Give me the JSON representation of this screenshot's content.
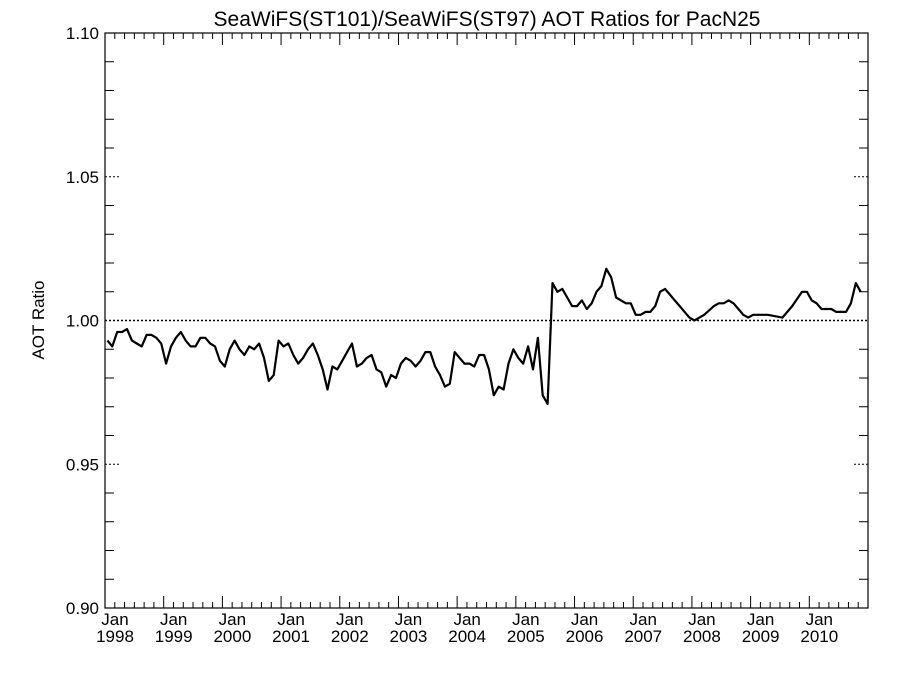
{
  "chart_data": {
    "type": "line",
    "title": "SeaWiFS(ST101)/SeaWiFS(ST97)  AOT Ratios for PacN25",
    "xlabel": "",
    "ylabel": "AOT Ratio",
    "ylim": [
      0.9,
      1.1
    ],
    "xlim": [
      "1998-01",
      "2010-12"
    ],
    "y_ticks": [
      "0.90",
      "0.95",
      "1.00",
      "1.05",
      "1.10"
    ],
    "x_ticks": [
      {
        "month": "Jan",
        "year": "1998"
      },
      {
        "month": "Jan",
        "year": "1999"
      },
      {
        "month": "Jan",
        "year": "2000"
      },
      {
        "month": "Jan",
        "year": "2001"
      },
      {
        "month": "Jan",
        "year": "2002"
      },
      {
        "month": "Jan",
        "year": "2003"
      },
      {
        "month": "Jan",
        "year": "2004"
      },
      {
        "month": "Jan",
        "year": "2005"
      },
      {
        "month": "Jan",
        "year": "2006"
      },
      {
        "month": "Jan",
        "year": "2007"
      },
      {
        "month": "Jan",
        "year": "2008"
      },
      {
        "month": "Jan",
        "year": "2009"
      },
      {
        "month": "Jan",
        "year": "2010"
      }
    ],
    "reference_line": 1.0,
    "grid": false,
    "series": [
      {
        "values": [
          [
            "1998-01",
            0.993
          ],
          [
            "1998-02",
            0.991
          ],
          [
            "1998-03",
            0.996
          ],
          [
            "1998-04",
            0.996
          ],
          [
            "1998-05",
            0.997
          ],
          [
            "1998-06",
            0.993
          ],
          [
            "1998-07",
            0.992
          ],
          [
            "1998-08",
            0.991
          ],
          [
            "1998-09",
            0.995
          ],
          [
            "1998-10",
            0.995
          ],
          [
            "1998-11",
            0.994
          ],
          [
            "1998-12",
            0.992
          ],
          [
            "1999-01",
            0.985
          ],
          [
            "1999-02",
            0.991
          ],
          [
            "1999-03",
            0.994
          ],
          [
            "1999-04",
            0.996
          ],
          [
            "1999-05",
            0.993
          ],
          [
            "1999-06",
            0.991
          ],
          [
            "1999-07",
            0.991
          ],
          [
            "1999-08",
            0.994
          ],
          [
            "1999-09",
            0.994
          ],
          [
            "1999-10",
            0.992
          ],
          [
            "1999-11",
            0.991
          ],
          [
            "1999-12",
            0.986
          ],
          [
            "2000-01",
            0.984
          ],
          [
            "2000-02",
            0.99
          ],
          [
            "2000-03",
            0.993
          ],
          [
            "2000-04",
            0.99
          ],
          [
            "2000-05",
            0.988
          ],
          [
            "2000-06",
            0.991
          ],
          [
            "2000-07",
            0.99
          ],
          [
            "2000-08",
            0.992
          ],
          [
            "2000-09",
            0.987
          ],
          [
            "2000-10",
            0.979
          ],
          [
            "2000-11",
            0.981
          ],
          [
            "2000-12",
            0.993
          ],
          [
            "2001-01",
            0.991
          ],
          [
            "2001-02",
            0.992
          ],
          [
            "2001-03",
            0.988
          ],
          [
            "2001-04",
            0.985
          ],
          [
            "2001-05",
            0.987
          ],
          [
            "2001-06",
            0.99
          ],
          [
            "2001-07",
            0.992
          ],
          [
            "2001-08",
            0.988
          ],
          [
            "2001-09",
            0.983
          ],
          [
            "2001-10",
            0.976
          ],
          [
            "2001-11",
            0.984
          ],
          [
            "2001-12",
            0.983
          ],
          [
            "2002-01",
            0.986
          ],
          [
            "2002-02",
            0.989
          ],
          [
            "2002-03",
            0.992
          ],
          [
            "2002-04",
            0.984
          ],
          [
            "2002-05",
            0.985
          ],
          [
            "2002-06",
            0.987
          ],
          [
            "2002-07",
            0.988
          ],
          [
            "2002-08",
            0.983
          ],
          [
            "2002-09",
            0.982
          ],
          [
            "2002-10",
            0.977
          ],
          [
            "2002-11",
            0.981
          ],
          [
            "2002-12",
            0.98
          ],
          [
            "2003-01",
            0.985
          ],
          [
            "2003-02",
            0.987
          ],
          [
            "2003-03",
            0.986
          ],
          [
            "2003-04",
            0.984
          ],
          [
            "2003-05",
            0.986
          ],
          [
            "2003-06",
            0.989
          ],
          [
            "2003-07",
            0.989
          ],
          [
            "2003-08",
            0.984
          ],
          [
            "2003-09",
            0.981
          ],
          [
            "2003-10",
            0.977
          ],
          [
            "2003-11",
            0.978
          ],
          [
            "2003-12",
            0.989
          ],
          [
            "2004-01",
            0.987
          ],
          [
            "2004-02",
            0.985
          ],
          [
            "2004-03",
            0.985
          ],
          [
            "2004-04",
            0.984
          ],
          [
            "2004-05",
            0.988
          ],
          [
            "2004-06",
            0.988
          ],
          [
            "2004-07",
            0.983
          ],
          [
            "2004-08",
            0.974
          ],
          [
            "2004-09",
            0.977
          ],
          [
            "2004-10",
            0.976
          ],
          [
            "2004-11",
            0.985
          ],
          [
            "2004-12",
            0.99
          ],
          [
            "2005-01",
            0.987
          ],
          [
            "2005-02",
            0.985
          ],
          [
            "2005-03",
            0.991
          ],
          [
            "2005-04",
            0.983
          ],
          [
            "2005-05",
            0.994
          ],
          [
            "2005-06",
            0.974
          ],
          [
            "2005-07",
            0.971
          ],
          [
            "2005-08",
            1.013
          ],
          [
            "2005-09",
            1.01
          ],
          [
            "2005-10",
            1.011
          ],
          [
            "2005-11",
            1.008
          ],
          [
            "2005-12",
            1.005
          ],
          [
            "2006-01",
            1.005
          ],
          [
            "2006-02",
            1.007
          ],
          [
            "2006-03",
            1.004
          ],
          [
            "2006-04",
            1.006
          ],
          [
            "2006-05",
            1.01
          ],
          [
            "2006-06",
            1.012
          ],
          [
            "2006-07",
            1.018
          ],
          [
            "2006-08",
            1.015
          ],
          [
            "2006-09",
            1.008
          ],
          [
            "2006-10",
            1.007
          ],
          [
            "2006-11",
            1.006
          ],
          [
            "2006-12",
            1.006
          ],
          [
            "2007-01",
            1.002
          ],
          [
            "2007-02",
            1.002
          ],
          [
            "2007-03",
            1.003
          ],
          [
            "2007-04",
            1.003
          ],
          [
            "2007-05",
            1.005
          ],
          [
            "2007-06",
            1.01
          ],
          [
            "2007-07",
            1.011
          ],
          [
            "2007-08",
            1.009
          ],
          [
            "2007-09",
            1.007
          ],
          [
            "2007-10",
            1.005
          ],
          [
            "2007-11",
            1.003
          ],
          [
            "2007-12",
            1.001
          ],
          [
            "2008-01",
            1.0
          ],
          [
            "2008-03",
            1.002
          ],
          [
            "2008-05",
            1.005
          ],
          [
            "2008-06",
            1.006
          ],
          [
            "2008-07",
            1.006
          ],
          [
            "2008-08",
            1.007
          ],
          [
            "2008-09",
            1.006
          ],
          [
            "2008-10",
            1.004
          ],
          [
            "2008-11",
            1.002
          ],
          [
            "2008-12",
            1.001
          ],
          [
            "2009-01",
            1.002
          ],
          [
            "2009-04",
            1.002
          ],
          [
            "2009-07",
            1.001
          ],
          [
            "2009-09",
            1.005
          ],
          [
            "2009-11",
            1.01
          ],
          [
            "2009-12",
            1.01
          ],
          [
            "2010-01",
            1.007
          ],
          [
            "2010-02",
            1.006
          ],
          [
            "2010-03",
            1.004
          ],
          [
            "2010-04",
            1.004
          ],
          [
            "2010-05",
            1.004
          ],
          [
            "2010-06",
            1.003
          ],
          [
            "2010-07",
            1.003
          ],
          [
            "2010-08",
            1.003
          ],
          [
            "2010-09",
            1.006
          ],
          [
            "2010-10",
            1.013
          ],
          [
            "2010-11",
            1.01
          ]
        ]
      }
    ]
  }
}
